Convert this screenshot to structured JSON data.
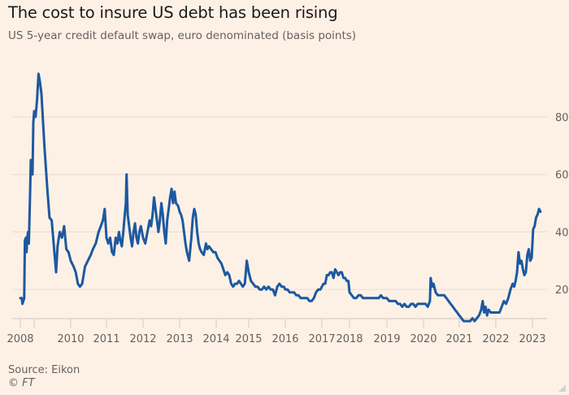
{
  "header": {
    "title": "The cost to insure US debt has been rising",
    "subtitle": "US 5-year credit default swap, euro denominated (basis points)"
  },
  "footer": {
    "source": "Source: Eikon",
    "copyright": "© FT"
  },
  "colors": {
    "background": "#fdf1e6",
    "line": "#1d58a0",
    "grid": "#e9dfd6",
    "axis": "#d9d0c8",
    "text": "#66605c",
    "title": "#1a1a1a"
  },
  "chart_data": {
    "type": "line",
    "title": "The cost to insure US debt has been rising",
    "subtitle": "US 5-year credit default swap, euro denominated (basis points)",
    "xlabel": "",
    "ylabel": "basis points",
    "ylim": [
      0,
      100
    ],
    "yticks": [
      20,
      40,
      60,
      80
    ],
    "y_axis_side": "right",
    "grid": true,
    "legend": "none",
    "xticks": [
      {
        "year": 2008,
        "label": "2008"
      },
      {
        "year": 2009,
        "label": ""
      },
      {
        "year": 2010,
        "label": "2010"
      },
      {
        "year": 2011,
        "label": "2011"
      },
      {
        "year": 2012,
        "label": "2012"
      },
      {
        "year": 2013,
        "label": "2013"
      },
      {
        "year": 2014,
        "label": "2014"
      },
      {
        "year": 2015,
        "label": "2015"
      },
      {
        "year": 2016,
        "label": "2016"
      },
      {
        "year": 2017,
        "label": "2017"
      },
      {
        "year": 2018,
        "label": "2018"
      },
      {
        "year": 2019,
        "label": "2019"
      },
      {
        "year": 2020,
        "label": "2020"
      },
      {
        "year": 2021,
        "label": "2021"
      },
      {
        "year": 2022,
        "label": "2022"
      },
      {
        "year": 2023,
        "label": "2023"
      }
    ],
    "series": [
      {
        "name": "US 5-year CDS (EUR)",
        "points": [
          [
            2008.0,
            17
          ],
          [
            2008.1,
            17
          ],
          [
            2008.15,
            15
          ],
          [
            2008.22,
            16
          ],
          [
            2008.28,
            17
          ],
          [
            2008.33,
            37
          ],
          [
            2008.4,
            38
          ],
          [
            2008.45,
            33
          ],
          [
            2008.5,
            38
          ],
          [
            2008.56,
            40
          ],
          [
            2008.62,
            36
          ],
          [
            2008.7,
            52
          ],
          [
            2008.76,
            65
          ],
          [
            2008.82,
            62
          ],
          [
            2008.88,
            60
          ],
          [
            2008.94,
            78
          ],
          [
            2009.0,
            82
          ],
          [
            2009.04,
            80
          ],
          [
            2009.08,
            86
          ],
          [
            2009.12,
            95
          ],
          [
            2009.16,
            92
          ],
          [
            2009.2,
            88
          ],
          [
            2009.28,
            70
          ],
          [
            2009.36,
            55
          ],
          [
            2009.42,
            45
          ],
          [
            2009.48,
            44
          ],
          [
            2009.52,
            38
          ],
          [
            2009.56,
            32
          ],
          [
            2009.6,
            26
          ],
          [
            2009.64,
            35
          ],
          [
            2009.7,
            40
          ],
          [
            2009.76,
            38
          ],
          [
            2009.82,
            42
          ],
          [
            2009.88,
            34
          ],
          [
            2009.94,
            33
          ],
          [
            2010.0,
            30
          ],
          [
            2010.08,
            28
          ],
          [
            2010.14,
            26
          ],
          [
            2010.2,
            22
          ],
          [
            2010.26,
            21
          ],
          [
            2010.32,
            22
          ],
          [
            2010.4,
            28
          ],
          [
            2010.48,
            30
          ],
          [
            2010.56,
            32
          ],
          [
            2010.62,
            34
          ],
          [
            2010.7,
            36
          ],
          [
            2010.78,
            40
          ],
          [
            2010.84,
            42
          ],
          [
            2010.9,
            44
          ],
          [
            2010.95,
            48
          ],
          [
            2011.0,
            38
          ],
          [
            2011.05,
            36
          ],
          [
            2011.1,
            38
          ],
          [
            2011.15,
            33
          ],
          [
            2011.2,
            32
          ],
          [
            2011.25,
            38
          ],
          [
            2011.3,
            36
          ],
          [
            2011.34,
            40
          ],
          [
            2011.38,
            37
          ],
          [
            2011.42,
            35
          ],
          [
            2011.46,
            40
          ],
          [
            2011.5,
            46
          ],
          [
            2011.53,
            50
          ],
          [
            2011.55,
            60
          ],
          [
            2011.58,
            46
          ],
          [
            2011.62,
            42
          ],
          [
            2011.66,
            38
          ],
          [
            2011.7,
            35
          ],
          [
            2011.74,
            40
          ],
          [
            2011.78,
            43
          ],
          [
            2011.82,
            38
          ],
          [
            2011.86,
            36
          ],
          [
            2011.9,
            40
          ],
          [
            2011.94,
            42
          ],
          [
            2012.0,
            38
          ],
          [
            2012.06,
            36
          ],
          [
            2012.12,
            40
          ],
          [
            2012.18,
            44
          ],
          [
            2012.22,
            42
          ],
          [
            2012.26,
            46
          ],
          [
            2012.3,
            52
          ],
          [
            2012.34,
            48
          ],
          [
            2012.38,
            44
          ],
          [
            2012.42,
            40
          ],
          [
            2012.46,
            44
          ],
          [
            2012.5,
            50
          ],
          [
            2012.54,
            46
          ],
          [
            2012.58,
            40
          ],
          [
            2012.62,
            36
          ],
          [
            2012.66,
            44
          ],
          [
            2012.7,
            48
          ],
          [
            2012.74,
            52
          ],
          [
            2012.78,
            55
          ],
          [
            2012.82,
            50
          ],
          [
            2012.86,
            54
          ],
          [
            2012.9,
            50
          ],
          [
            2012.96,
            49
          ],
          [
            2013.0,
            47
          ],
          [
            2013.04,
            46
          ],
          [
            2013.08,
            44
          ],
          [
            2013.12,
            40
          ],
          [
            2013.16,
            36
          ],
          [
            2013.2,
            33
          ],
          [
            2013.26,
            30
          ],
          [
            2013.32,
            38
          ],
          [
            2013.36,
            45
          ],
          [
            2013.4,
            48
          ],
          [
            2013.44,
            46
          ],
          [
            2013.48,
            40
          ],
          [
            2013.52,
            36
          ],
          [
            2013.56,
            34
          ],
          [
            2013.6,
            33
          ],
          [
            2013.66,
            32
          ],
          [
            2013.72,
            36
          ],
          [
            2013.76,
            34
          ],
          [
            2013.8,
            35
          ],
          [
            2013.86,
            34
          ],
          [
            2013.92,
            33
          ],
          [
            2013.98,
            33
          ],
          [
            2014.04,
            31
          ],
          [
            2014.1,
            30
          ],
          [
            2014.16,
            29
          ],
          [
            2014.22,
            27
          ],
          [
            2014.28,
            25
          ],
          [
            2014.34,
            26
          ],
          [
            2014.4,
            25
          ],
          [
            2014.46,
            22
          ],
          [
            2014.52,
            21
          ],
          [
            2014.58,
            22
          ],
          [
            2014.64,
            22
          ],
          [
            2014.7,
            23
          ],
          [
            2014.76,
            22
          ],
          [
            2014.82,
            21
          ],
          [
            2014.88,
            22
          ],
          [
            2014.94,
            30
          ],
          [
            2015.0,
            26
          ],
          [
            2015.06,
            23
          ],
          [
            2015.12,
            22
          ],
          [
            2015.18,
            21
          ],
          [
            2015.24,
            21
          ],
          [
            2015.3,
            20
          ],
          [
            2015.36,
            20
          ],
          [
            2015.42,
            21
          ],
          [
            2015.48,
            20
          ],
          [
            2015.54,
            21
          ],
          [
            2015.6,
            20
          ],
          [
            2015.66,
            20
          ],
          [
            2015.72,
            18
          ],
          [
            2015.78,
            21
          ],
          [
            2015.84,
            22
          ],
          [
            2015.9,
            21
          ],
          [
            2015.96,
            21
          ],
          [
            2016.0,
            20
          ],
          [
            2016.06,
            20
          ],
          [
            2016.12,
            19
          ],
          [
            2016.18,
            19
          ],
          [
            2016.24,
            19
          ],
          [
            2016.3,
            18
          ],
          [
            2016.36,
            18
          ],
          [
            2016.42,
            17
          ],
          [
            2016.48,
            17
          ],
          [
            2016.54,
            17
          ],
          [
            2016.6,
            17
          ],
          [
            2016.66,
            16
          ],
          [
            2016.72,
            16
          ],
          [
            2016.78,
            17
          ],
          [
            2016.84,
            19
          ],
          [
            2016.9,
            20
          ],
          [
            2016.96,
            20
          ],
          [
            2017.0,
            21
          ],
          [
            2017.06,
            22
          ],
          [
            2017.12,
            22
          ],
          [
            2017.18,
            25
          ],
          [
            2017.24,
            25
          ],
          [
            2017.3,
            26
          ],
          [
            2017.36,
            26
          ],
          [
            2017.42,
            24
          ],
          [
            2017.48,
            27
          ],
          [
            2017.54,
            26
          ],
          [
            2017.6,
            25
          ],
          [
            2017.66,
            26
          ],
          [
            2017.72,
            26
          ],
          [
            2017.78,
            24
          ],
          [
            2017.84,
            24
          ],
          [
            2017.9,
            23
          ],
          [
            2017.96,
            23
          ],
          [
            2018.0,
            19
          ],
          [
            2018.06,
            18
          ],
          [
            2018.12,
            17
          ],
          [
            2018.18,
            17
          ],
          [
            2018.24,
            18
          ],
          [
            2018.3,
            18
          ],
          [
            2018.36,
            17
          ],
          [
            2018.42,
            17
          ],
          [
            2018.48,
            17
          ],
          [
            2018.54,
            17
          ],
          [
            2018.6,
            17
          ],
          [
            2018.66,
            17
          ],
          [
            2018.72,
            17
          ],
          [
            2018.78,
            17
          ],
          [
            2018.84,
            18
          ],
          [
            2018.9,
            17
          ],
          [
            2018.96,
            17
          ],
          [
            2019.0,
            17
          ],
          [
            2019.06,
            16
          ],
          [
            2019.12,
            16
          ],
          [
            2019.18,
            16
          ],
          [
            2019.24,
            16
          ],
          [
            2019.3,
            15
          ],
          [
            2019.36,
            15
          ],
          [
            2019.42,
            14
          ],
          [
            2019.48,
            15
          ],
          [
            2019.54,
            14
          ],
          [
            2019.6,
            14
          ],
          [
            2019.66,
            15
          ],
          [
            2019.72,
            15
          ],
          [
            2019.78,
            14
          ],
          [
            2019.84,
            15
          ],
          [
            2019.9,
            15
          ],
          [
            2019.96,
            15
          ],
          [
            2020.0,
            15
          ],
          [
            2020.06,
            15
          ],
          [
            2020.12,
            14
          ],
          [
            2020.18,
            16
          ],
          [
            2020.2,
            24
          ],
          [
            2020.24,
            21
          ],
          [
            2020.28,
            22
          ],
          [
            2020.34,
            19
          ],
          [
            2020.4,
            18
          ],
          [
            2020.46,
            18
          ],
          [
            2020.52,
            18
          ],
          [
            2020.58,
            18
          ],
          [
            2020.64,
            17
          ],
          [
            2020.7,
            16
          ],
          [
            2020.76,
            15
          ],
          [
            2020.82,
            14
          ],
          [
            2020.88,
            13
          ],
          [
            2020.94,
            12
          ],
          [
            2021.0,
            11
          ],
          [
            2021.06,
            10
          ],
          [
            2021.12,
            9
          ],
          [
            2021.18,
            9
          ],
          [
            2021.24,
            9
          ],
          [
            2021.3,
            9
          ],
          [
            2021.36,
            10
          ],
          [
            2021.42,
            9
          ],
          [
            2021.48,
            10
          ],
          [
            2021.54,
            11
          ],
          [
            2021.6,
            13
          ],
          [
            2021.64,
            16
          ],
          [
            2021.68,
            12
          ],
          [
            2021.72,
            14
          ],
          [
            2021.76,
            11
          ],
          [
            2021.8,
            13
          ],
          [
            2021.86,
            12
          ],
          [
            2021.92,
            12
          ],
          [
            2021.98,
            12
          ],
          [
            2022.04,
            12
          ],
          [
            2022.1,
            12
          ],
          [
            2022.16,
            14
          ],
          [
            2022.22,
            16
          ],
          [
            2022.28,
            15
          ],
          [
            2022.34,
            17
          ],
          [
            2022.4,
            20
          ],
          [
            2022.46,
            22
          ],
          [
            2022.5,
            21
          ],
          [
            2022.54,
            23
          ],
          [
            2022.58,
            26
          ],
          [
            2022.62,
            33
          ],
          [
            2022.66,
            29
          ],
          [
            2022.7,
            30
          ],
          [
            2022.74,
            27
          ],
          [
            2022.78,
            25
          ],
          [
            2022.82,
            26
          ],
          [
            2022.86,
            32
          ],
          [
            2022.9,
            34
          ],
          [
            2022.94,
            30
          ],
          [
            2022.98,
            31
          ],
          [
            2023.02,
            41
          ],
          [
            2023.06,
            42
          ],
          [
            2023.1,
            45
          ],
          [
            2023.14,
            46
          ],
          [
            2023.18,
            48
          ],
          [
            2023.22,
            47
          ]
        ]
      }
    ]
  }
}
